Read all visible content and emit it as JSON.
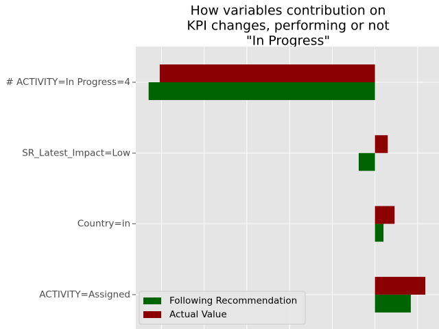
{
  "chart_data": {
    "type": "bar",
    "orientation": "horizontal",
    "title": [
      "How variables contribution on",
      "KPI changes, performing or not",
      "\"In Progress\""
    ],
    "categories": [
      "# ACTIVITY=In Progress=4",
      "SR_Latest_Impact=Low",
      "Country=in",
      "ACTIVITY=Assigned"
    ],
    "series": [
      {
        "name": "Following Recommendation",
        "color": "#006400",
        "values": [
          -0.265,
          -0.019,
          0.01,
          0.042
        ]
      },
      {
        "name": "Actual Value",
        "color": "#8b0000",
        "values": [
          -0.252,
          0.015,
          0.023,
          0.059
        ]
      }
    ],
    "xlim": [
      -0.28,
      0.075
    ],
    "grid": true,
    "legend_position": "lower-left",
    "xticks_shown": false
  }
}
